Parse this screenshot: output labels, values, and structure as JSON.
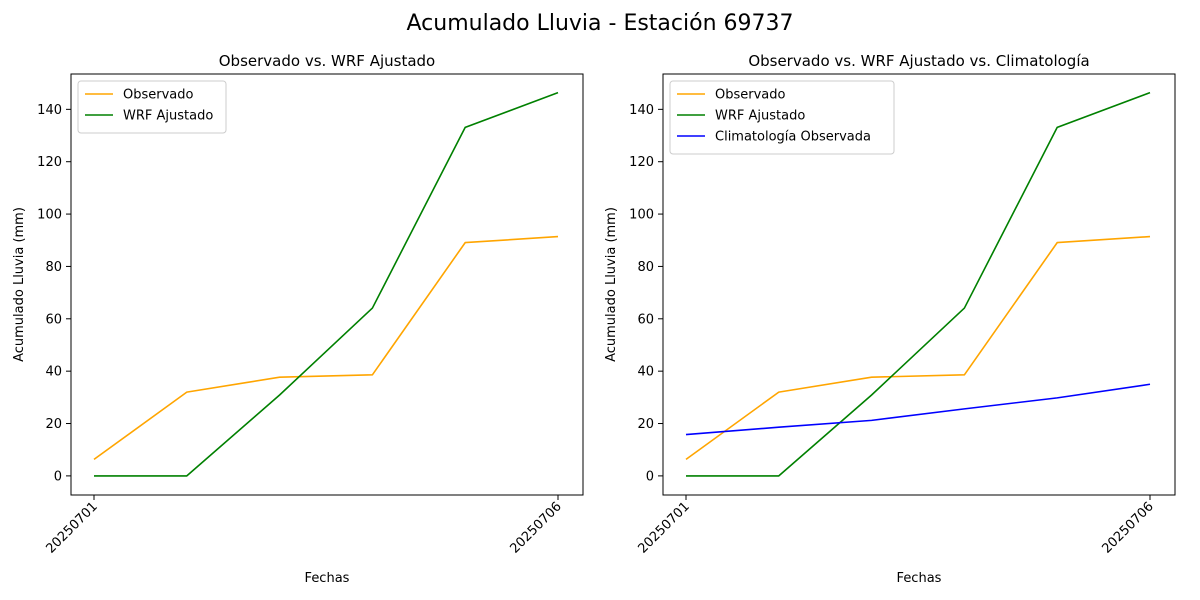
{
  "figure": {
    "title": "Acumulado Lluvia - Estación 69737"
  },
  "colors": {
    "observado": "#ffa500",
    "wrf": "#008000",
    "clima": "#0000ff",
    "axis": "#000000"
  },
  "chart_data": [
    {
      "type": "line",
      "title": "Observado vs. WRF Ajustado",
      "xlabel": "Fechas",
      "ylabel": "Acumulado Lluvia (mm)",
      "x": [
        "20250701",
        "20250702",
        "20250703",
        "20250704",
        "20250705",
        "20250706"
      ],
      "xtick_labels": [
        "20250701",
        "20250706"
      ],
      "yticks": [
        0,
        20,
        40,
        60,
        80,
        100,
        120,
        140
      ],
      "ylim": [
        -7.3,
        153.5
      ],
      "legend": "top-left",
      "grid": false,
      "series": [
        {
          "name": "Observado",
          "color": "#ffa500",
          "values": [
            6.3,
            32.0,
            37.7,
            38.6,
            89.1,
            91.4
          ]
        },
        {
          "name": "WRF Ajustado",
          "color": "#008000",
          "values": [
            0.0,
            0.0,
            30.9,
            64.1,
            133.1,
            146.4
          ]
        }
      ]
    },
    {
      "type": "line",
      "title": "Observado vs. WRF Ajustado vs. Climatología",
      "xlabel": "Fechas",
      "ylabel": "Acumulado Lluvia (mm)",
      "x": [
        "20250701",
        "20250702",
        "20250703",
        "20250704",
        "20250705",
        "20250706"
      ],
      "xtick_labels": [
        "20250701",
        "20250706"
      ],
      "yticks": [
        0,
        20,
        40,
        60,
        80,
        100,
        120,
        140
      ],
      "ylim": [
        -7.3,
        153.5
      ],
      "legend": "top-left",
      "grid": false,
      "series": [
        {
          "name": "Observado",
          "color": "#ffa500",
          "values": [
            6.3,
            32.0,
            37.7,
            38.6,
            89.1,
            91.4
          ]
        },
        {
          "name": "WRF Ajustado",
          "color": "#008000",
          "values": [
            0.0,
            0.0,
            30.9,
            64.1,
            133.1,
            146.4
          ]
        },
        {
          "name": "Climatología Observada",
          "color": "#0000ff",
          "values": [
            15.8,
            18.6,
            21.2,
            25.6,
            29.8,
            35.0
          ]
        }
      ]
    }
  ]
}
